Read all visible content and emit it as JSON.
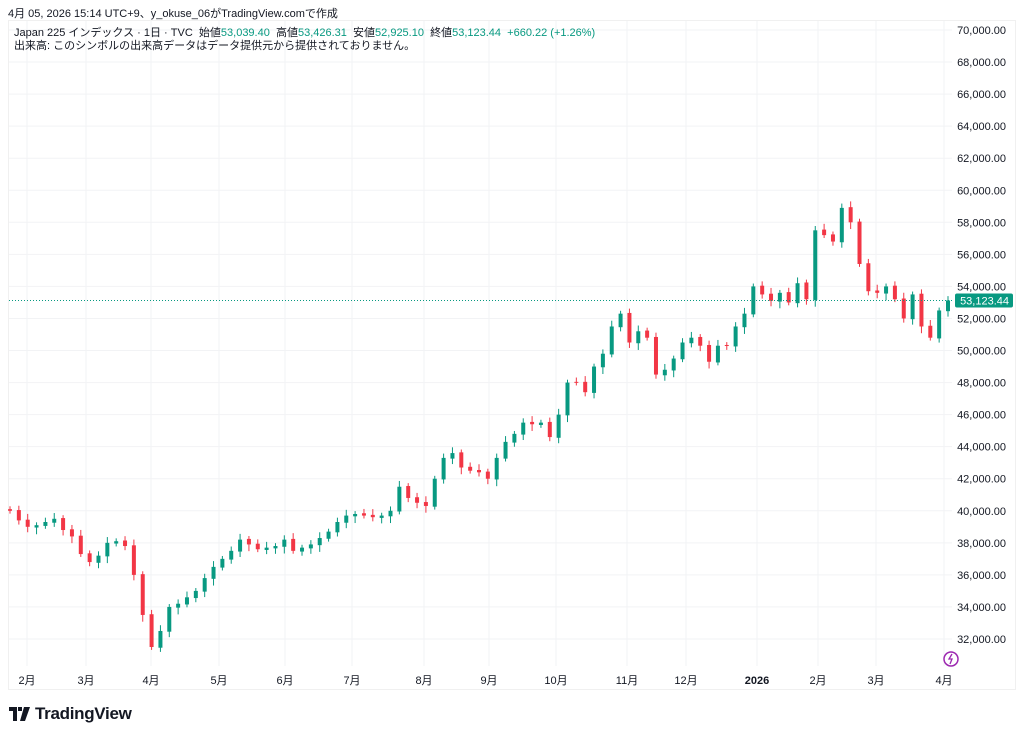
{
  "header": {
    "title": "4月 05, 2026 15:14 UTC+9、y_okuse_06がTradingView.comで作成"
  },
  "legend": {
    "symbol": "Japan 225 インデックス · 1日 · TVC",
    "open_label": "始値",
    "open": "53,039.40",
    "high_label": "高値",
    "high": "53,426.31",
    "low_label": "安値",
    "low": "52,925.10",
    "close_label": "終値",
    "close": "53,123.44",
    "change": "+660.22 (+1.26%)",
    "volume_note": "出来高: このシンボルの出来高データはデータ提供元から提供されておりません。"
  },
  "logo": {
    "text": "TradingView"
  },
  "colors": {
    "up": "#089981",
    "down": "#f23645",
    "grid": "#f2f3f5"
  },
  "chart_data": {
    "type": "candlestick",
    "title": "Japan 225 インデックス · 1日 · TVC",
    "ylim": [
      30600,
      70600
    ],
    "y_ticks": [
      "70,000.00",
      "68,000.00",
      "66,000.00",
      "64,000.00",
      "62,000.00",
      "60,000.00",
      "58,000.00",
      "56,000.00",
      "54,000.00",
      "52,000.00",
      "50,000.00",
      "48,000.00",
      "46,000.00",
      "44,000.00",
      "42,000.00",
      "40,000.00",
      "38,000.00",
      "36,000.00",
      "34,000.00",
      "32,000.00"
    ],
    "x_ticks": [
      "2月",
      "3月",
      "4月",
      "5月",
      "6月",
      "7月",
      "8月",
      "9月",
      "10月",
      "11月",
      "12月",
      "2026",
      "2月",
      "3月",
      "4月"
    ],
    "last_price": "53,123.44",
    "closes": [
      40000,
      39400,
      39000,
      39100,
      39300,
      39500,
      38800,
      38400,
      37300,
      36800,
      37200,
      38000,
      38100,
      37800,
      36000,
      33500,
      31500,
      32500,
      34000,
      34200,
      34600,
      35000,
      35800,
      36500,
      37000,
      37500,
      38200,
      37900,
      37600,
      37700,
      37800,
      38200,
      37500,
      37700,
      37900,
      38300,
      38700,
      39300,
      39700,
      39800,
      39700,
      39600,
      39700,
      40000,
      41500,
      40800,
      40500,
      40300,
      42000,
      43300,
      43600,
      42700,
      42500,
      42400,
      42000,
      43300,
      44300,
      44800,
      45500,
      45400,
      45500,
      44600,
      46000,
      48000,
      48000,
      47400,
      49000,
      49800,
      51500,
      52300,
      50500,
      51200,
      50800,
      48500,
      48800,
      49500,
      50500,
      50800,
      50300,
      49300,
      50300,
      50300,
      51500,
      52300,
      54000,
      53500,
      53100,
      53600,
      53000,
      54200,
      53200,
      57500,
      57200,
      56800,
      58900,
      58000,
      55400,
      53700,
      53600,
      54000,
      53200,
      52000,
      53500,
      51500,
      50800,
      52500,
      53123
    ]
  }
}
